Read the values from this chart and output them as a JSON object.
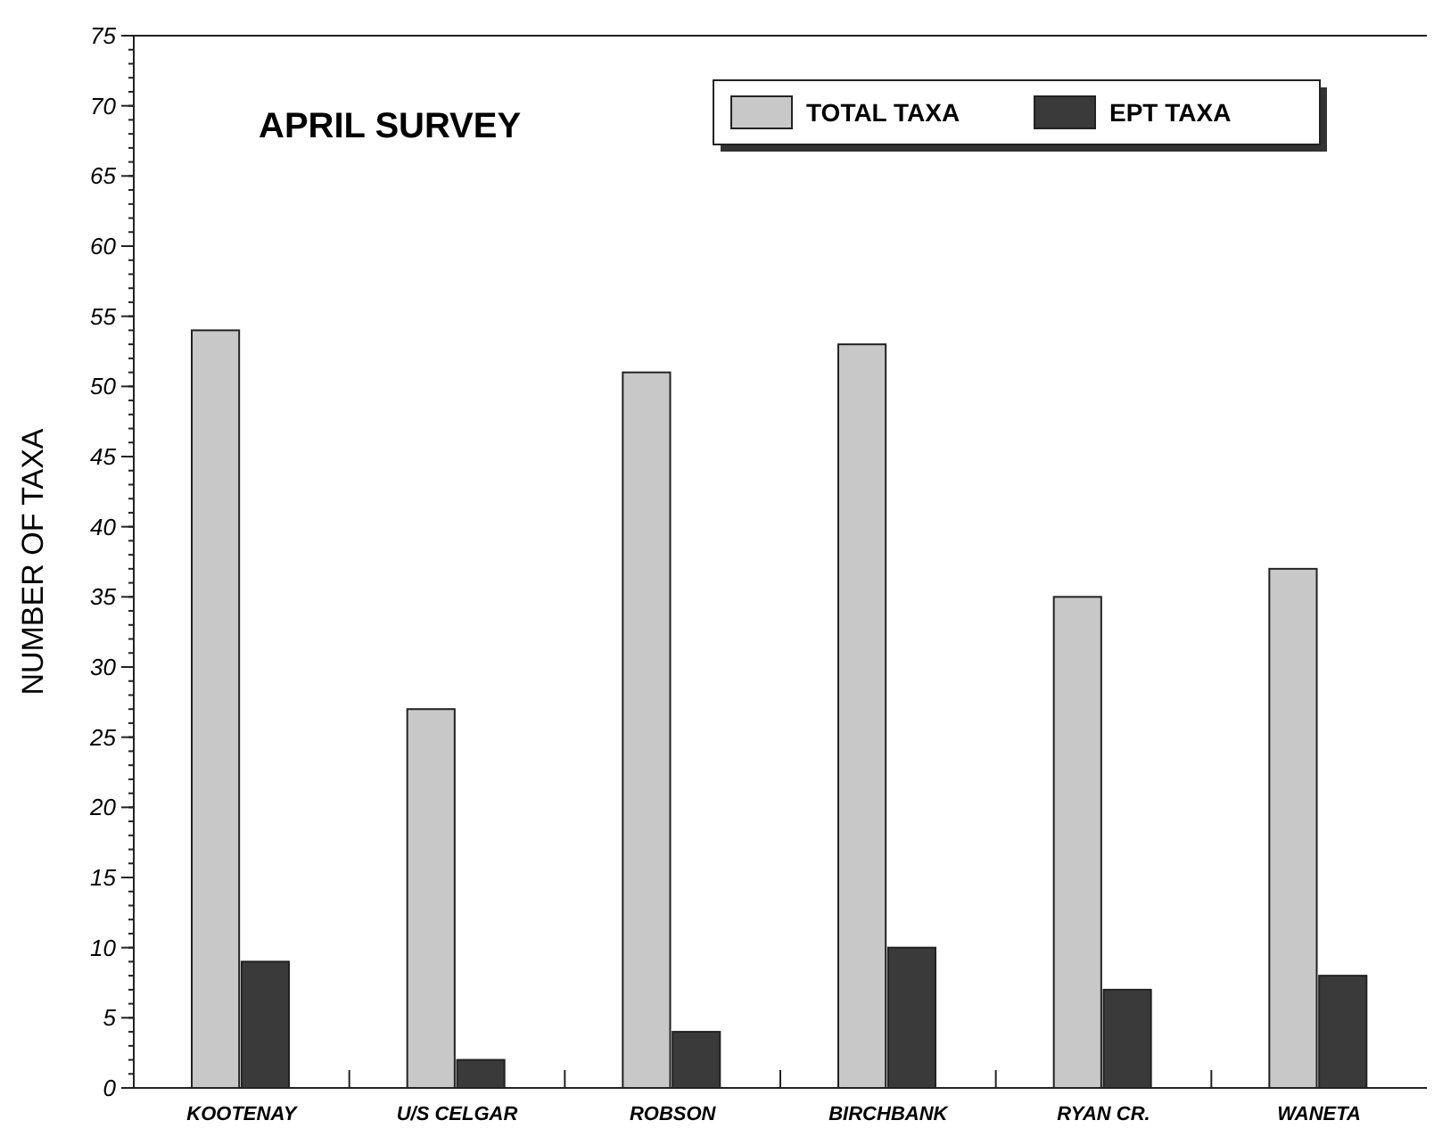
{
  "chart_data": {
    "type": "bar",
    "title": "APRIL SURVEY",
    "ylabel": "NUMBER OF TAXA",
    "categories": [
      "KOOTENAY",
      "U/S CELGAR",
      "ROBSON",
      "BIRCHBANK",
      "RYAN CR.",
      "WANETA"
    ],
    "series": [
      {
        "name": "TOTAL TAXA",
        "color": "#c8c8c8",
        "values": [
          54,
          27,
          51,
          53,
          35,
          37
        ]
      },
      {
        "name": "EPT TAXA",
        "color": "#3a3a3a",
        "values": [
          9,
          2,
          4,
          10,
          7,
          8
        ]
      }
    ],
    "ylim": [
      0,
      75
    ],
    "yticks": [
      0,
      5,
      10,
      15,
      20,
      25,
      30,
      35,
      40,
      45,
      50,
      55,
      60,
      65,
      70,
      75
    ],
    "grid": false,
    "legend": "top right"
  }
}
